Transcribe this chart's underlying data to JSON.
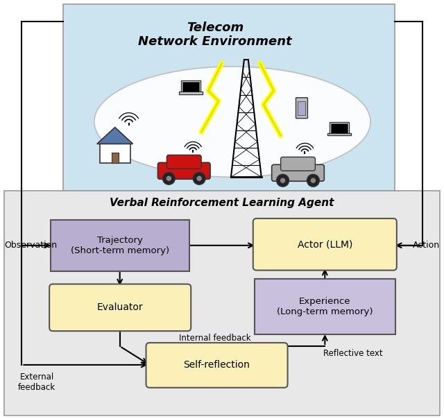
{
  "fig_width": 6.4,
  "fig_height": 6.04,
  "dpi": 100,
  "top_bg": "#cce4f0",
  "bot_bg": "#e8e8e8",
  "ellipse_color": "#dff0f8",
  "traj_face": "#b8aed0",
  "traj_edge": "#555555",
  "actor_face": "#faf0b8",
  "actor_edge": "#555555",
  "eval_face": "#faf0b8",
  "eval_edge": "#555555",
  "exp_face": "#c8c0dc",
  "exp_edge": "#555555",
  "self_face": "#faf0b8",
  "self_edge": "#555555",
  "top_title_line1": "Telecom",
  "top_title_line2": "Network Environment",
  "bot_title": "Verbal Reinforcement Learning Agent",
  "label_obs": "Observation",
  "label_act": "Action",
  "label_int": "Internal feedback",
  "label_ext_line1": "External",
  "label_ext_line2": "feedback",
  "label_ref": "Reflective text",
  "traj_label": "Trajectory\n(Short-term memory)",
  "actor_label": "Actor (LLM)",
  "eval_label": "Evaluator",
  "exp_label": "Experience\n(Long-term memory)",
  "self_label": "Self-reflection"
}
